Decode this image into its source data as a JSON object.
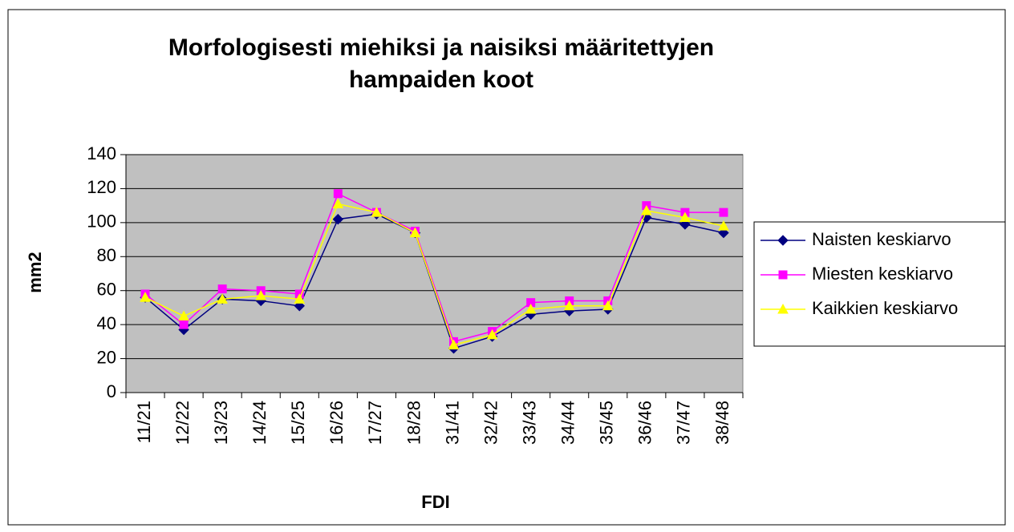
{
  "chart_data": {
    "type": "line",
    "title": "Morfologisesti miehiksi ja naisiksi määritettyjen hampaiden koot",
    "xlabel": "FDI",
    "ylabel": "mm2",
    "categories": [
      "11/21",
      "12/22",
      "13/23",
      "14/24",
      "15/25",
      "16/26",
      "17/27",
      "18/28",
      "31/41",
      "32/42",
      "33/43",
      "34/44",
      "35/45",
      "36/46",
      "37/47",
      "38/48"
    ],
    "series": [
      {
        "name": "Naisten keskiarvo",
        "color": "#000080",
        "marker": "diamond",
        "values": [
          56,
          37,
          55,
          54,
          51,
          102,
          105,
          94,
          26,
          33,
          46,
          48,
          49,
          103,
          99,
          94
        ]
      },
      {
        "name": "Miesten keskiarvo",
        "color": "#ff00ff",
        "marker": "square",
        "values": [
          58,
          40,
          61,
          60,
          58,
          117,
          106,
          95,
          30,
          36,
          53,
          54,
          54,
          110,
          106,
          106
        ]
      },
      {
        "name": "Kaikkien keskiarvo",
        "color": "#ffff00",
        "marker": "triangle",
        "values": [
          56,
          45,
          55,
          57,
          55,
          111,
          106,
          94,
          28,
          34,
          49,
          51,
          51,
          107,
          103,
          98
        ]
      }
    ],
    "ylim": [
      0,
      140
    ],
    "yticks": [
      0,
      20,
      40,
      60,
      80,
      100,
      120,
      140
    ],
    "grid": true,
    "legend": "right"
  }
}
